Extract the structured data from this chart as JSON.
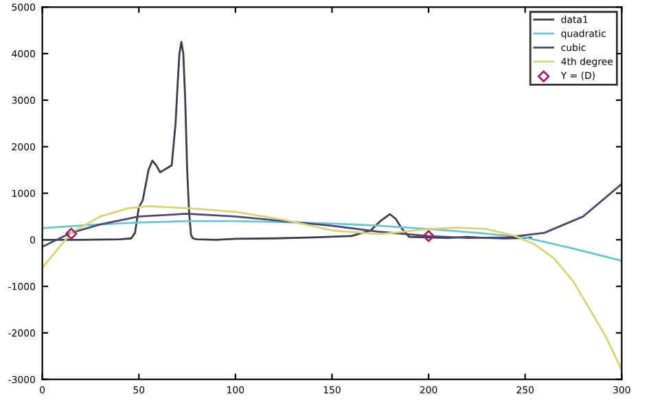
{
  "chart_data": {
    "type": "line",
    "xlim": [
      0,
      300
    ],
    "ylim": [
      -3000,
      5000
    ],
    "xticks": [
      0,
      50,
      100,
      150,
      200,
      250,
      300
    ],
    "yticks": [
      -3000,
      -2000,
      -1000,
      0,
      1000,
      2000,
      3000,
      4000,
      5000
    ],
    "grid": false,
    "legend": "top right",
    "series": [
      {
        "name": "data1",
        "color": "#3c3c48",
        "marker": "none",
        "x": [
          0,
          20,
          40,
          46,
          48,
          50,
          52,
          55,
          57,
          59,
          61,
          63,
          65,
          67,
          69,
          70,
          71,
          72,
          73,
          74,
          75,
          76,
          77,
          78,
          80,
          90,
          100,
          120,
          140,
          160,
          170,
          175,
          180,
          183,
          186,
          190,
          200,
          210,
          220,
          230,
          240,
          250,
          253
        ],
        "values": [
          0,
          0,
          10,
          30,
          150,
          700,
          850,
          1500,
          1700,
          1600,
          1450,
          1500,
          1550,
          1600,
          2500,
          3300,
          4000,
          4250,
          4000,
          3000,
          1500,
          600,
          100,
          30,
          10,
          0,
          20,
          30,
          50,
          80,
          200,
          400,
          550,
          450,
          250,
          60,
          50,
          40,
          60,
          40,
          30,
          40,
          50
        ]
      },
      {
        "name": "quadratic",
        "color": "#6cc4d0",
        "marker": "none",
        "x": [
          0,
          25,
          50,
          75,
          100,
          125,
          150,
          175,
          200,
          225,
          250,
          275,
          300
        ],
        "values": [
          250,
          320,
          370,
          400,
          400,
          380,
          350,
          300,
          230,
          150,
          50,
          -190,
          -450
        ]
      },
      {
        "name": "cubic",
        "color": "#4a4a70",
        "marker": "none",
        "x": [
          0,
          15,
          30,
          50,
          75,
          100,
          125,
          150,
          175,
          200,
          220,
          240,
          260,
          280,
          300
        ],
        "values": [
          -150,
          150,
          330,
          500,
          560,
          500,
          400,
          300,
          170,
          80,
          40,
          50,
          150,
          500,
          1200
        ]
      },
      {
        "name": "4th degree",
        "color": "#d8d278",
        "marker": "none",
        "x": [
          0,
          15,
          30,
          45,
          55,
          75,
          100,
          125,
          150,
          175,
          200,
          215,
          230,
          245,
          255,
          265,
          275,
          285,
          292,
          300
        ],
        "values": [
          -600,
          150,
          500,
          680,
          720,
          680,
          600,
          430,
          200,
          120,
          230,
          260,
          230,
          80,
          -100,
          -400,
          -900,
          -1600,
          -2100,
          -2800
        ]
      },
      {
        "name": "Y = (D)",
        "type": "scatter",
        "color": "#a0206f",
        "marker": "diamond",
        "x": [
          15,
          200
        ],
        "values": [
          130,
          80
        ]
      }
    ]
  }
}
